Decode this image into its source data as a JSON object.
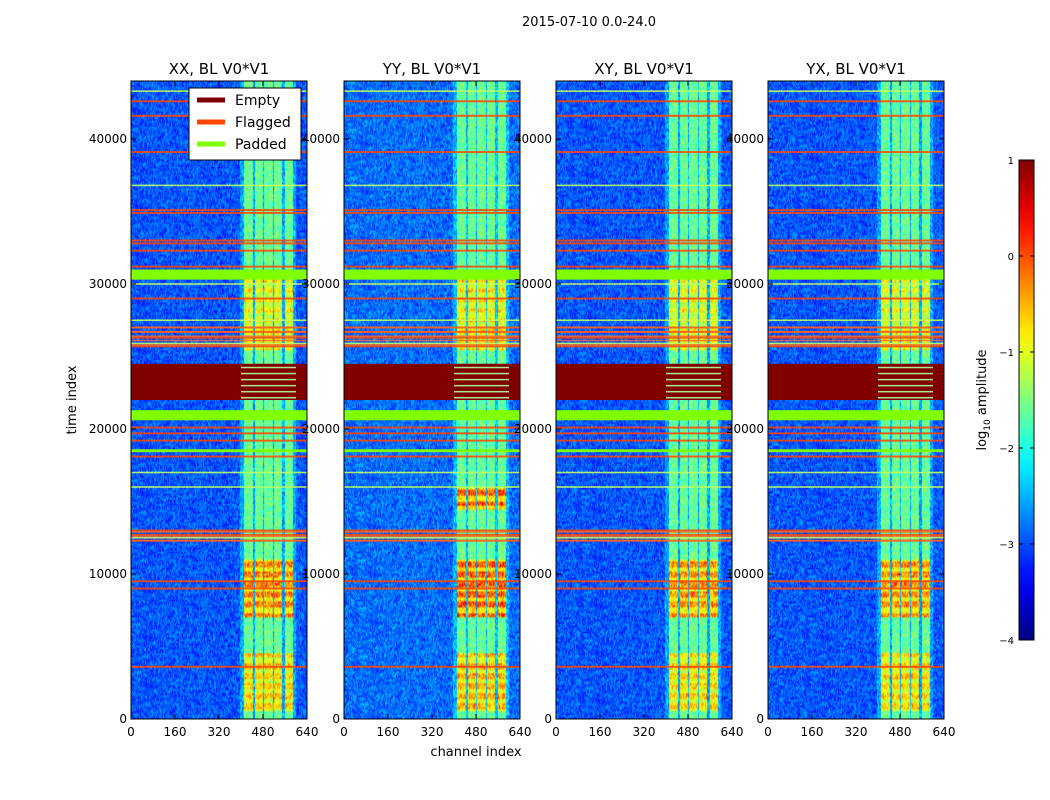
{
  "chart_data": {
    "type": "heatmap",
    "title": "2015-07-10 0.0-24.0",
    "xlabel": "channel index",
    "ylabel": "time index",
    "xlim": [
      0,
      640
    ],
    "ylim": [
      0,
      44000
    ],
    "x_ticks": [
      0,
      160,
      320,
      480,
      640
    ],
    "y_ticks": [
      0,
      10000,
      20000,
      30000,
      40000
    ],
    "panels": [
      {
        "title": "XX, BL V0*V1",
        "pol": "XX",
        "low_band_boost": 0.0,
        "intensity": 1.0
      },
      {
        "title": "YY, BL V0*V1",
        "pol": "YY",
        "low_band_boost": 0.15,
        "intensity": 1.15
      },
      {
        "title": "XY, BL V0*V1",
        "pol": "XY",
        "low_band_boost": 0.0,
        "intensity": 0.95
      },
      {
        "title": "YX, BL V0*V1",
        "pol": "YX",
        "low_band_boost": 0.0,
        "intensity": 0.95
      }
    ],
    "bright_channel_bands": [
      [
        410,
        445
      ],
      [
        450,
        480
      ],
      [
        485,
        515
      ],
      [
        520,
        550
      ],
      [
        560,
        590
      ]
    ],
    "legend": {
      "location": "upper right of first panel",
      "entries": [
        {
          "label": "Empty",
          "color": "#800000"
        },
        {
          "label": "Flagged",
          "color": "#ff4500"
        },
        {
          "label": "Padded",
          "color": "#7fff00"
        }
      ]
    },
    "colorbar": {
      "label": "log10 amplitude",
      "label_base": "log",
      "label_sub": "10",
      "label_rest": " amplitude",
      "min": -4,
      "max": 1,
      "ticks": [
        1,
        0,
        -1,
        -2,
        -3,
        -4
      ],
      "tick_labels": [
        "1",
        "0",
        "−1",
        "−2",
        "−3",
        "−4"
      ]
    },
    "masks": {
      "empty_ranges": [
        [
          22000,
          24500
        ]
      ],
      "padded_ranges": [
        [
          30300,
          31000
        ],
        [
          20600,
          21300
        ],
        [
          18400,
          18600
        ]
      ],
      "flagged_lines": [
        3600,
        9000,
        9500,
        12300,
        12700,
        13000,
        18100,
        19200,
        19700,
        20100,
        25700,
        26300,
        26700,
        27000,
        29000,
        31200,
        32300,
        32800,
        33000,
        34900,
        35100,
        39100,
        41600,
        42600
      ],
      "padded_lines": [
        12500,
        16000,
        17000,
        25900,
        27500,
        30000,
        36800,
        43300
      ],
      "flagged_band_ranges": [
        [
          25800,
          27000
        ],
        [
          12300,
          13000
        ]
      ]
    }
  }
}
